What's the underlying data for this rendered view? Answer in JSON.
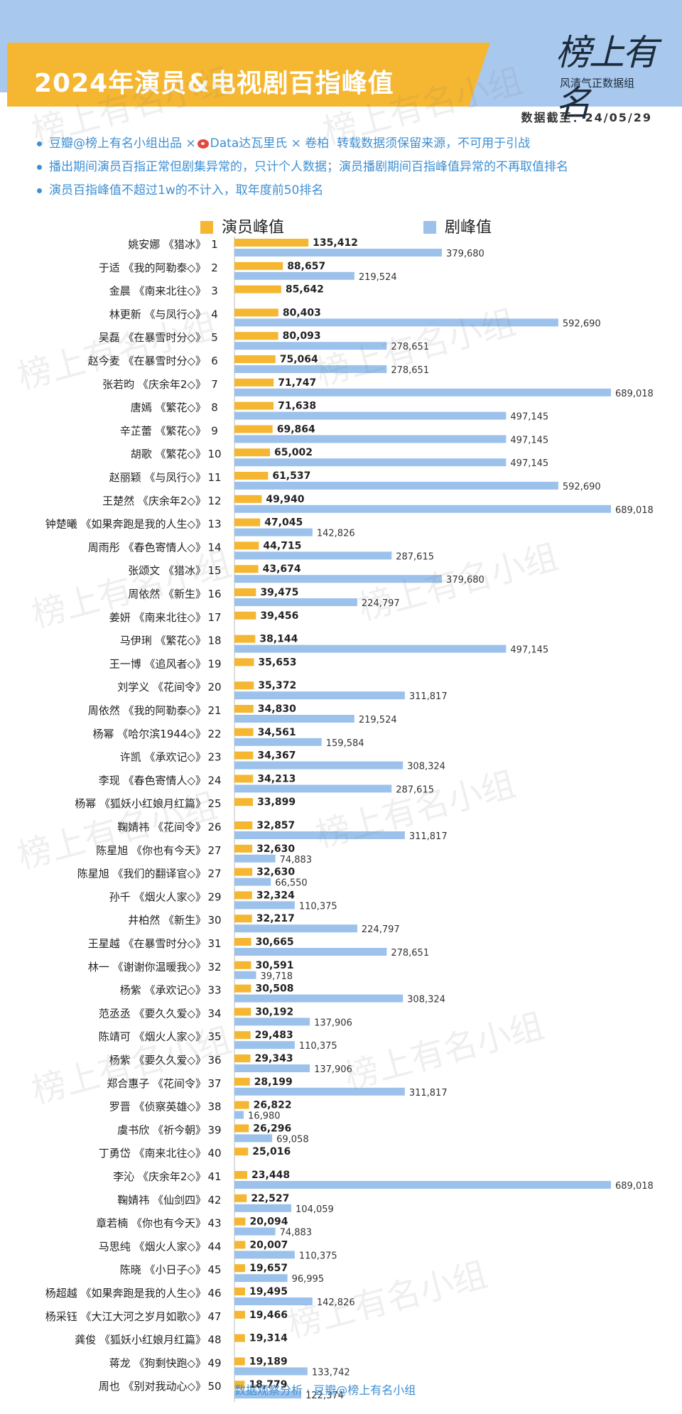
{
  "header": {
    "title": "2024年演员&电视剧百指峰值",
    "logo_main": "榜上有名",
    "logo_sub": "风清气正数据组",
    "date_label": "数据截至：24/05/29"
  },
  "notes": [
    "豆瓣@榜上有名小组出品 ×",
    "Data达瓦里氏 × 卷柏",
    "转载数据须保留来源，不可用于引战",
    "播出期间演员百指正常但剧集异常的，只计个人数据；演员播剧期间百指峰值异常的不再取值排名",
    "演员百指峰值不超过1w的不计入，取年度前50排名"
  ],
  "watermark": "榜上有名小组",
  "footer": "数据观察分析 · 豆瓣@榜上有名小组",
  "colors": {
    "actor": "#f5b731",
    "drama": "#9cc2ec",
    "header_blue": "#a9c8ee",
    "note_blue": "#3f8fd2"
  },
  "chart_data": {
    "type": "bar",
    "orientation": "horizontal",
    "legend_placement": "top",
    "series": [
      {
        "name": "演员峰值",
        "color": "#f5b731"
      },
      {
        "name": "剧峰值",
        "color": "#9cc2ec"
      }
    ],
    "rows": [
      {
        "name": "姚安娜",
        "drama": "《猎冰》",
        "rank": "1",
        "actor": 135412,
        "show": 379680
      },
      {
        "name": "于适",
        "drama": "《我的阿勒泰◇》",
        "rank": "2",
        "actor": 88657,
        "show": 219524
      },
      {
        "name": "金晨",
        "drama": "《南来北往◇》",
        "rank": "3",
        "actor": 85642,
        "show": null
      },
      {
        "name": "林更新",
        "drama": "《与凤行◇》",
        "rank": "4",
        "actor": 80403,
        "show": 592690
      },
      {
        "name": "吴磊",
        "drama": "《在暴雪时分◇》",
        "rank": "5",
        "actor": 80093,
        "show": 278651
      },
      {
        "name": "赵今麦",
        "drama": "《在暴雪时分◇》",
        "rank": "6",
        "actor": 75064,
        "show": 278651
      },
      {
        "name": "张若昀",
        "drama": "《庆余年2◇》",
        "rank": "7",
        "actor": 71747,
        "show": 689018
      },
      {
        "name": "唐嫣",
        "drama": "《繁花◇》",
        "rank": "8",
        "actor": 71638,
        "show": 497145
      },
      {
        "name": "辛芷蕾",
        "drama": "《繁花◇》",
        "rank": "9",
        "actor": 69864,
        "show": 497145
      },
      {
        "name": "胡歌",
        "drama": "《繁花◇》",
        "rank": "10",
        "actor": 65002,
        "show": 497145
      },
      {
        "name": "赵丽颖",
        "drama": "《与凤行◇》",
        "rank": "11",
        "actor": 61537,
        "show": 592690
      },
      {
        "name": "王楚然",
        "drama": "《庆余年2◇》",
        "rank": "12",
        "actor": 49940,
        "show": 689018
      },
      {
        "name": "钟楚曦",
        "drama": "《如果奔跑是我的人生◇》",
        "rank": "13",
        "actor": 47045,
        "show": 142826
      },
      {
        "name": "周雨彤",
        "drama": "《春色寄情人◇》",
        "rank": "14",
        "actor": 44715,
        "show": 287615
      },
      {
        "name": "张颂文",
        "drama": "《猎冰》",
        "rank": "15",
        "actor": 43674,
        "show": 379680
      },
      {
        "name": "周依然",
        "drama": "《新生》",
        "rank": "16",
        "actor": 39475,
        "show": 224797
      },
      {
        "name": "姜妍",
        "drama": "《南来北往◇》",
        "rank": "17",
        "actor": 39456,
        "show": null
      },
      {
        "name": "马伊琍",
        "drama": "《繁花◇》",
        "rank": "18",
        "actor": 38144,
        "show": 497145
      },
      {
        "name": "王一博",
        "drama": "《追风者◇》",
        "rank": "19",
        "actor": 35653,
        "show": null
      },
      {
        "name": "刘学义",
        "drama": "《花间令》",
        "rank": "20",
        "actor": 35372,
        "show": 311817
      },
      {
        "name": "周依然",
        "drama": "《我的阿勒泰◇》",
        "rank": "21",
        "actor": 34830,
        "show": 219524
      },
      {
        "name": "杨幂",
        "drama": "《哈尔滨1944◇》",
        "rank": "22",
        "actor": 34561,
        "show": 159584
      },
      {
        "name": "许凯",
        "drama": "《承欢记◇》",
        "rank": "23",
        "actor": 34367,
        "show": 308324
      },
      {
        "name": "李现",
        "drama": "《春色寄情人◇》",
        "rank": "24",
        "actor": 34213,
        "show": 287615
      },
      {
        "name": "杨幂",
        "drama": "《狐妖小红娘月红篇》",
        "rank": "25",
        "actor": 33899,
        "show": null
      },
      {
        "name": "鞠婧祎",
        "drama": "《花间令》",
        "rank": "26",
        "actor": 32857,
        "show": 311817
      },
      {
        "name": "陈星旭",
        "drama": "《你也有今天》",
        "rank": "27",
        "actor": 32630,
        "show": 74883
      },
      {
        "name": "陈星旭",
        "drama": "《我们的翻译官◇》",
        "rank": "27",
        "actor": 32630,
        "show": 66550
      },
      {
        "name": "孙千",
        "drama": "《烟火人家◇》",
        "rank": "29",
        "actor": 32324,
        "show": 110375
      },
      {
        "name": "井柏然",
        "drama": "《新生》",
        "rank": "30",
        "actor": 32217,
        "show": 224797
      },
      {
        "name": "王星越",
        "drama": "《在暴雪时分◇》",
        "rank": "31",
        "actor": 30665,
        "show": 278651
      },
      {
        "name": "林一",
        "drama": "《谢谢你温暖我◇》",
        "rank": "32",
        "actor": 30591,
        "show": 39718
      },
      {
        "name": "杨紫",
        "drama": "《承欢记◇》",
        "rank": "33",
        "actor": 30508,
        "show": 308324
      },
      {
        "name": "范丞丞",
        "drama": "《要久久爱◇》",
        "rank": "34",
        "actor": 30192,
        "show": 137906
      },
      {
        "name": "陈靖可",
        "drama": "《烟火人家◇》",
        "rank": "35",
        "actor": 29483,
        "show": 110375
      },
      {
        "name": "杨紫",
        "drama": "《要久久爱◇》",
        "rank": "36",
        "actor": 29343,
        "show": 137906
      },
      {
        "name": "郑合惠子",
        "drama": "《花间令》",
        "rank": "37",
        "actor": 28199,
        "show": 311817
      },
      {
        "name": "罗晋",
        "drama": "《侦察英雄◇》",
        "rank": "38",
        "actor": 26822,
        "show": 16980
      },
      {
        "name": "虞书欣",
        "drama": "《祈今朝》",
        "rank": "39",
        "actor": 26296,
        "show": 69058
      },
      {
        "name": "丁勇岱",
        "drama": "《南来北往◇》",
        "rank": "40",
        "actor": 25016,
        "show": null
      },
      {
        "name": "李沁",
        "drama": "《庆余年2◇》",
        "rank": "41",
        "actor": 23448,
        "show": 689018
      },
      {
        "name": "鞠婧祎",
        "drama": "《仙剑四》",
        "rank": "42",
        "actor": 22527,
        "show": 104059
      },
      {
        "name": "章若楠",
        "drama": "《你也有今天》",
        "rank": "43",
        "actor": 20094,
        "show": 74883
      },
      {
        "name": "马思纯",
        "drama": "《烟火人家◇》",
        "rank": "44",
        "actor": 20007,
        "show": 110375
      },
      {
        "name": "陈晓",
        "drama": "《小日子◇》",
        "rank": "45",
        "actor": 19657,
        "show": 96995
      },
      {
        "name": "杨超越",
        "drama": "《如果奔跑是我的人生◇》",
        "rank": "46",
        "actor": 19495,
        "show": 142826
      },
      {
        "name": "杨采钰",
        "drama": "《大江大河之岁月如歌◇》",
        "rank": "47",
        "actor": 19466,
        "show": null
      },
      {
        "name": "龚俊",
        "drama": "《狐妖小红娘月红篇》",
        "rank": "48",
        "actor": 19314,
        "show": null
      },
      {
        "name": "蒋龙",
        "drama": "《狗剩快跑◇》",
        "rank": "49",
        "actor": 19189,
        "show": 133742
      },
      {
        "name": "周也",
        "drama": "《别对我动心◇》",
        "rank": "50",
        "actor": 18779,
        "show": 122374
      }
    ]
  }
}
